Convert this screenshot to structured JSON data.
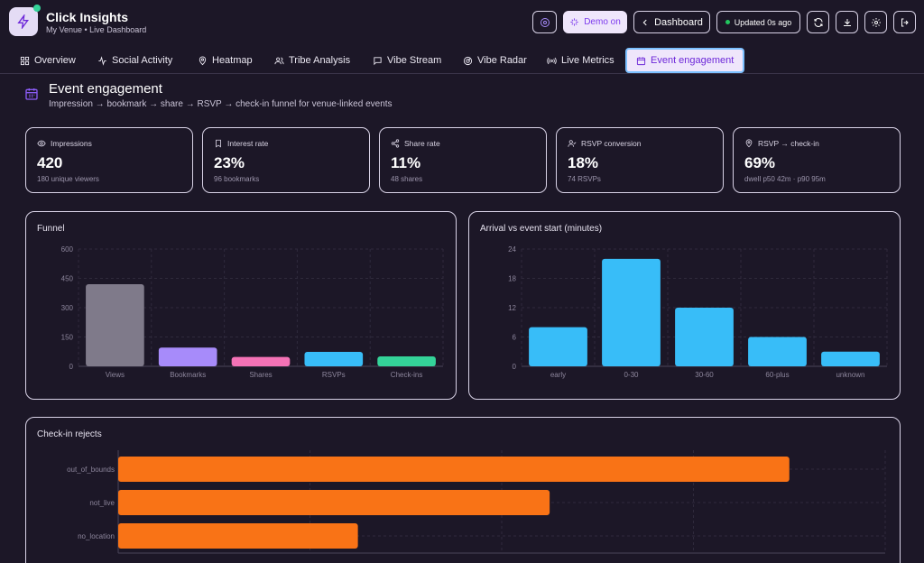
{
  "app": {
    "title": "Click Insights",
    "subtitle": "My Venue • Live Dashboard"
  },
  "header": {
    "demo_label": "Demo on",
    "dashboard_label": "Dashboard",
    "status_label": "Updated 0s ago",
    "icons": [
      "palette-icon",
      "sparkles-icon",
      "chevron-left-icon",
      "refresh-icon",
      "download-icon",
      "gear-icon",
      "logout-icon"
    ]
  },
  "tabs": [
    {
      "label": "Overview",
      "icon": "grid-icon"
    },
    {
      "label": "Social Activity",
      "icon": "activity-icon"
    },
    {
      "label": "Heatmap",
      "icon": "map-pin-icon"
    },
    {
      "label": "Tribe Analysis",
      "icon": "users-icon"
    },
    {
      "label": "Vibe Stream",
      "icon": "message-icon"
    },
    {
      "label": "Vibe Radar",
      "icon": "radar-icon"
    },
    {
      "label": "Live Metrics",
      "icon": "broadcast-icon"
    },
    {
      "label": "Event engagement",
      "icon": "calendar-icon",
      "active": true
    }
  ],
  "section": {
    "title": "Event engagement",
    "subtitle": "Impression → bookmark → share → RSVP → check-in funnel for venue-linked events"
  },
  "stats": [
    {
      "label": "Impressions",
      "value": "420",
      "sub": "180 unique viewers",
      "icon": "eye-icon"
    },
    {
      "label": "Interest rate",
      "value": "23%",
      "sub": "96 bookmarks",
      "icon": "bookmark-icon"
    },
    {
      "label": "Share rate",
      "value": "11%",
      "sub": "48 shares",
      "icon": "share-icon"
    },
    {
      "label": "RSVP conversion",
      "value": "18%",
      "sub": "74 RSVPs",
      "icon": "user-check-icon"
    },
    {
      "label": "RSVP → check-in",
      "value": "69%",
      "sub": "dwell p50 42m · p90 95m",
      "icon": "map-pin-icon"
    }
  ],
  "colors": {
    "accent": "#7c3aed",
    "bg": "#1c1727",
    "views": "#7f7a8a",
    "bookmarks": "#a78bfa",
    "shares": "#f472b6",
    "rsvps": "#38bdf8",
    "checkins": "#34d399",
    "arrival": "#38bdf8",
    "rejects": "#f97316"
  },
  "chart_data": [
    {
      "type": "bar",
      "title": "Funnel",
      "categories": [
        "Views",
        "Bookmarks",
        "Shares",
        "RSVPs",
        "Check-ins"
      ],
      "values": [
        420,
        96,
        48,
        74,
        51
      ],
      "colors": [
        "#7f7a8a",
        "#a78bfa",
        "#f472b6",
        "#38bdf8",
        "#34d399"
      ],
      "yticks": [
        0,
        150,
        300,
        450,
        600
      ],
      "ylim": [
        0,
        600
      ],
      "grid": true
    },
    {
      "type": "bar",
      "title": "Arrival vs event start (minutes)",
      "categories": [
        "early",
        "0-30",
        "30-60",
        "60-plus",
        "unknown"
      ],
      "values": [
        8,
        22,
        12,
        6,
        3
      ],
      "color": "#38bdf8",
      "yticks": [
        0,
        6,
        12,
        18,
        24
      ],
      "ylim": [
        0,
        24
      ],
      "grid": true
    },
    {
      "type": "bar",
      "orientation": "horizontal",
      "title": "Check-in rejects",
      "categories": [
        "out_of_bounds",
        "not_live",
        "no_location"
      ],
      "values": [
        35,
        22.5,
        12.5
      ],
      "color": "#f97316",
      "xlim": [
        0,
        40
      ],
      "grid": true
    }
  ]
}
